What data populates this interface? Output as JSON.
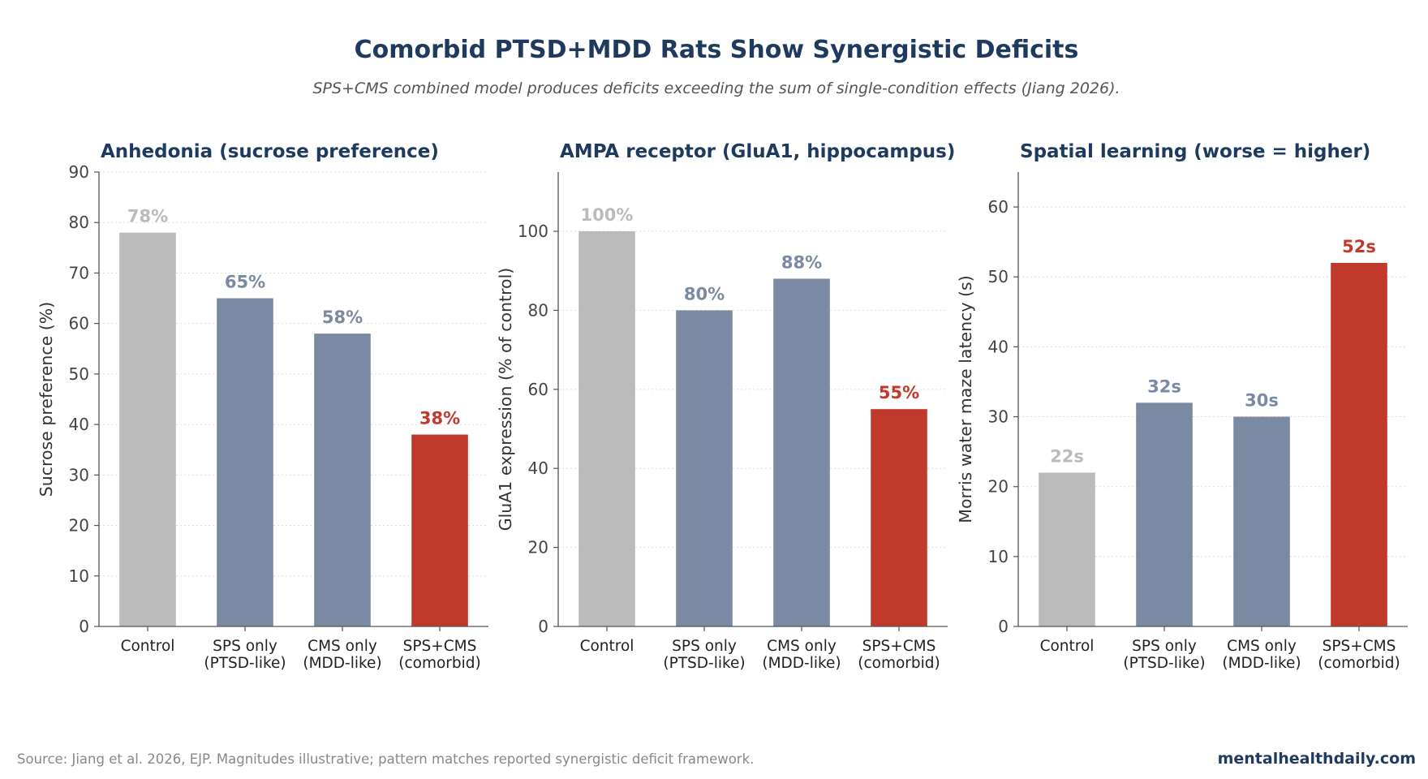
{
  "title": "Comorbid PTSD+MDD Rats Show Synergistic Deficits",
  "subtitle": "SPS+CMS combined model produces deficits exceeding the sum of single-condition effects (Jiang 2026).",
  "footer": {
    "source": "Source: Jiang et al. 2026, EJP. Magnitudes illustrative; pattern matches reported synergistic deficit framework.",
    "brand": "mentalhealthdaily.com"
  },
  "colors": {
    "control": "#bbbbbb",
    "single": "#7a8aa2",
    "comorbid": "#c0392b",
    "title": "#1f3a5f"
  },
  "chart_data": [
    {
      "type": "bar",
      "title": "Anhedonia (sucrose preference)",
      "ylabel": "Sucrose preference (%)",
      "xlabel": "",
      "categories": [
        [
          "Control"
        ],
        [
          "SPS only",
          "(PTSD-like)"
        ],
        [
          "CMS only",
          "(MDD-like)"
        ],
        [
          "SPS+CMS",
          "(comorbid)"
        ]
      ],
      "values": [
        78,
        65,
        58,
        38
      ],
      "value_labels": [
        "78%",
        "65%",
        "58%",
        "38%"
      ],
      "bar_colors": [
        "control",
        "single",
        "single",
        "comorbid"
      ],
      "ylim": [
        0,
        90
      ],
      "yticks": [
        0,
        10,
        20,
        30,
        40,
        50,
        60,
        70,
        80,
        90
      ],
      "grid": true,
      "legend": "none"
    },
    {
      "type": "bar",
      "title": "AMPA receptor (GluA1, hippocampus)",
      "ylabel": "GluA1 expression (% of control)",
      "xlabel": "",
      "categories": [
        [
          "Control"
        ],
        [
          "SPS only",
          "(PTSD-like)"
        ],
        [
          "CMS only",
          "(MDD-like)"
        ],
        [
          "SPS+CMS",
          "(comorbid)"
        ]
      ],
      "values": [
        100,
        80,
        88,
        55
      ],
      "value_labels": [
        "100%",
        "80%",
        "88%",
        "55%"
      ],
      "bar_colors": [
        "control",
        "single",
        "single",
        "comorbid"
      ],
      "ylim": [
        0,
        115
      ],
      "yticks": [
        0,
        20,
        40,
        60,
        80,
        100
      ],
      "grid": true,
      "legend": "none"
    },
    {
      "type": "bar",
      "title": "Spatial learning (worse = higher)",
      "ylabel": "Morris water maze latency (s)",
      "xlabel": "",
      "categories": [
        [
          "Control"
        ],
        [
          "SPS only",
          "(PTSD-like)"
        ],
        [
          "CMS only",
          "(MDD-like)"
        ],
        [
          "SPS+CMS",
          "(comorbid)"
        ]
      ],
      "values": [
        22,
        32,
        30,
        52
      ],
      "value_labels": [
        "22s",
        "32s",
        "30s",
        "52s"
      ],
      "bar_colors": [
        "control",
        "single",
        "single",
        "comorbid"
      ],
      "ylim": [
        0,
        65
      ],
      "yticks": [
        0,
        10,
        20,
        30,
        40,
        50,
        60
      ],
      "grid": true,
      "legend": "none"
    }
  ]
}
